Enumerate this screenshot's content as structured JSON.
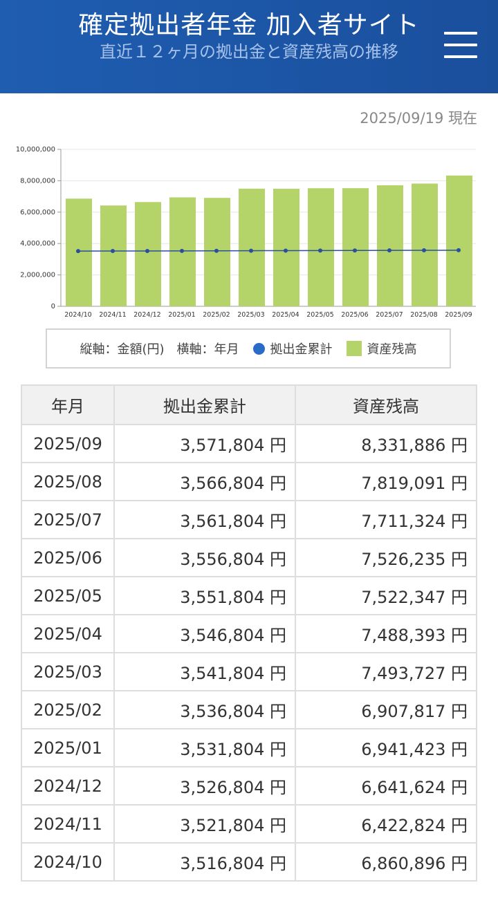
{
  "header": {
    "site_title": "確定拠出者年金 加入者サイト",
    "page_subtitle": "直近１２ヶ月の拠出金と資産残高の推移"
  },
  "as_of": "2025/09/19 現在",
  "legend": {
    "axes_note": "縦軸：金額(円)　横軸：年月",
    "contribution_label": "拠出金累計",
    "balance_label": "資産残高"
  },
  "table": {
    "headers": [
      "年月",
      "拠出金累計",
      "資産残高"
    ],
    "rows": [
      {
        "ym": "2025/09",
        "contrib": "3,571,804 円",
        "balance": "8,331,886 円"
      },
      {
        "ym": "2025/08",
        "contrib": "3,566,804 円",
        "balance": "7,819,091 円"
      },
      {
        "ym": "2025/07",
        "contrib": "3,561,804 円",
        "balance": "7,711,324 円"
      },
      {
        "ym": "2025/06",
        "contrib": "3,556,804 円",
        "balance": "7,526,235 円"
      },
      {
        "ym": "2025/05",
        "contrib": "3,551,804 円",
        "balance": "7,522,347 円"
      },
      {
        "ym": "2025/04",
        "contrib": "3,546,804 円",
        "balance": "7,488,393 円"
      },
      {
        "ym": "2025/03",
        "contrib": "3,541,804 円",
        "balance": "7,493,727 円"
      },
      {
        "ym": "2025/02",
        "contrib": "3,536,804 円",
        "balance": "6,907,817 円"
      },
      {
        "ym": "2025/01",
        "contrib": "3,531,804 円",
        "balance": "6,941,423 円"
      },
      {
        "ym": "2024/12",
        "contrib": "3,526,804 円",
        "balance": "6,641,624 円"
      },
      {
        "ym": "2024/11",
        "contrib": "3,521,804 円",
        "balance": "6,422,824 円"
      },
      {
        "ym": "2024/10",
        "contrib": "3,516,804 円",
        "balance": "6,860,896 円"
      }
    ]
  },
  "colors": {
    "header_bg": "#1f5db1",
    "bar": "#b4d46a",
    "line": "#2a4f9c",
    "dot": "#2a6bc8"
  },
  "chart_data": {
    "type": "bar",
    "categories": [
      "2024/10",
      "2024/11",
      "2024/12",
      "2025/01",
      "2025/02",
      "2025/03",
      "2025/04",
      "2025/05",
      "2025/06",
      "2025/07",
      "2025/08",
      "2025/09"
    ],
    "series": [
      {
        "name": "資産残高",
        "type": "bar",
        "values": [
          6860896,
          6422824,
          6641624,
          6941423,
          6907817,
          7493727,
          7488393,
          7522347,
          7526235,
          7711324,
          7819091,
          8331886
        ]
      },
      {
        "name": "拠出金累計",
        "type": "line",
        "values": [
          3516804,
          3521804,
          3526804,
          3531804,
          3536804,
          3541804,
          3546804,
          3551804,
          3556804,
          3561804,
          3566804,
          3571804
        ]
      }
    ],
    "yticks": [
      "0",
      "2,000,000",
      "4,000,000",
      "6,000,000",
      "8,000,000",
      "10,000,000"
    ],
    "ylim": [
      0,
      10000000
    ],
    "grid": true,
    "legend": "bottom"
  }
}
